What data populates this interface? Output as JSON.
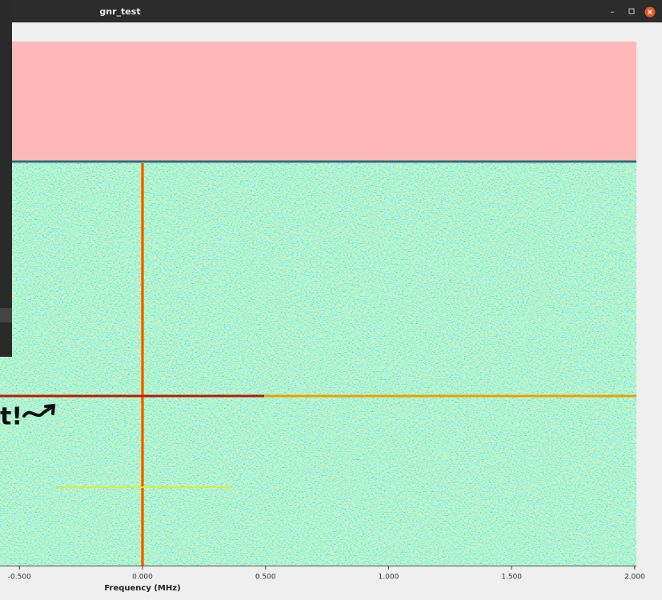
{
  "window": {
    "title": "gnr_test"
  },
  "plot": {
    "x_label": "Frequency (MHz)",
    "xlim": [
      -0.579,
      2.007
    ],
    "x_ticks": [
      {
        "value": -0.5,
        "label": "-0.500"
      },
      {
        "value": 0,
        "label": "0.000"
      },
      {
        "value": 0.5,
        "label": "0.500"
      },
      {
        "value": 1,
        "label": "1.000"
      },
      {
        "value": 1.5,
        "label": "1.500"
      },
      {
        "value": 2,
        "label": "2.000"
      }
    ]
  },
  "annotation": {
    "text": "t!"
  }
}
